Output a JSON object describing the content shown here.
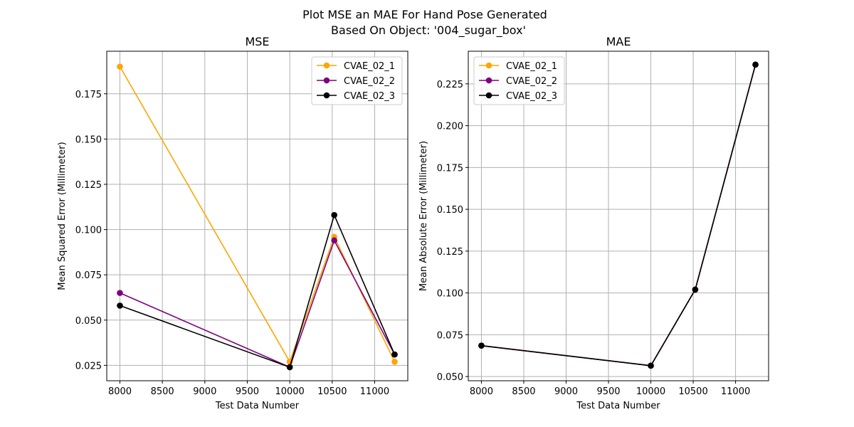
{
  "figure": {
    "suptitle_line1": "Plot MSE an MAE For Hand Pose Generated",
    "suptitle_line2": "Based On Object: '004_sugar_box'"
  },
  "chart_data": [
    {
      "type": "line",
      "title": "MSE",
      "xlabel": "Test Data Number",
      "ylabel": "Mean Squared Error (Millimeter)",
      "xlim": [
        7845,
        11390
      ],
      "ylim": [
        0.0165,
        0.1985
      ],
      "xticks": [
        8000,
        8500,
        9000,
        9500,
        10000,
        10500,
        11000
      ],
      "yticks": [
        0.025,
        0.05,
        0.075,
        0.1,
        0.125,
        0.15,
        0.175
      ],
      "grid": true,
      "legend_position": "top-right",
      "x": [
        8000,
        10000,
        10524,
        11235
      ],
      "series": [
        {
          "name": "CVAE_02_1",
          "color": "#ffa500",
          "values": [
            0.19,
            0.027,
            0.096,
            0.027
          ]
        },
        {
          "name": "CVAE_02_2",
          "color": "#800080",
          "values": [
            0.065,
            0.024,
            0.094,
            0.031
          ]
        },
        {
          "name": "CVAE_02_3",
          "color": "#000000",
          "values": [
            0.058,
            0.024,
            0.108,
            0.031
          ]
        }
      ]
    },
    {
      "type": "line",
      "title": "MAE",
      "xlabel": "Test Data Number",
      "ylabel": "Mean Absolute Error (Millimeter)",
      "xlim": [
        7845,
        11390
      ],
      "ylim": [
        0.0475,
        0.2445
      ],
      "xticks": [
        8000,
        8500,
        9000,
        9500,
        10000,
        10500,
        11000
      ],
      "yticks": [
        0.05,
        0.075,
        0.1,
        0.125,
        0.15,
        0.175,
        0.2,
        0.225
      ],
      "grid": true,
      "legend_position": "top-left",
      "x": [
        8000,
        10000,
        10524,
        11235
      ],
      "series": [
        {
          "name": "CVAE_02_1",
          "color": "#ffa500",
          "values": [
            0.0685,
            0.0565,
            0.102,
            0.2365
          ]
        },
        {
          "name": "CVAE_02_2",
          "color": "#800080",
          "values": [
            0.0685,
            0.0565,
            0.102,
            0.2365
          ]
        },
        {
          "name": "CVAE_02_3",
          "color": "#000000",
          "values": [
            0.0685,
            0.0565,
            0.102,
            0.2365
          ]
        }
      ]
    }
  ]
}
